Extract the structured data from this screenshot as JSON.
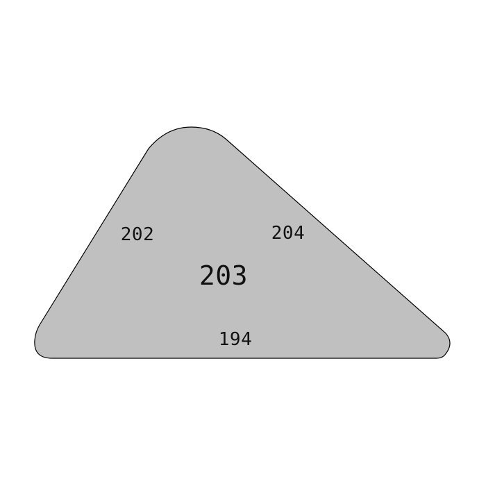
{
  "shape": {
    "fill_color": "#c0c0c0",
    "stroke_color": "#000000",
    "center_label": "203",
    "edge_labels": {
      "left": "202",
      "right": "204",
      "bottom": "194"
    }
  }
}
